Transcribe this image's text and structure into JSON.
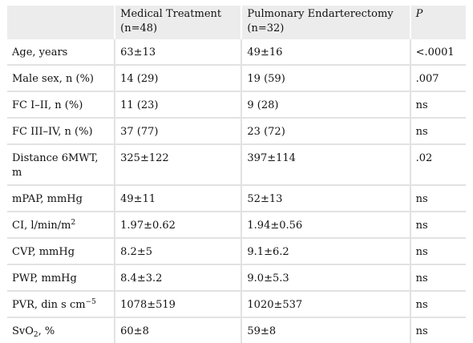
{
  "header": {
    "col0": "",
    "col1_line1": "Medical Treatment",
    "col1_line2": "(n=48)",
    "col2_line1": "Pulmonary Endarterectomy",
    "col2_line2": "(n=32)",
    "col3": "P"
  },
  "rows": [
    {
      "label": "Age, years",
      "med": "63±13",
      "pea": "49±16",
      "p": "<.0001"
    },
    {
      "label": "Male sex, n (%)",
      "med": "14 (29)",
      "pea": "19 (59)",
      "p": ".007"
    },
    {
      "label": "FC I–II, n (%)",
      "med": "11 (23)",
      "pea": "9 (28)",
      "p": "ns"
    },
    {
      "label": "FC III–IV, n (%)",
      "med": "37 (77)",
      "pea": "23 (72)",
      "p": "ns"
    },
    {
      "label_line1": "Distance 6MWT,",
      "label_line2": "m",
      "med": "325±122",
      "pea": "397±114",
      "p": ".02"
    },
    {
      "label": "mPAP, mmHg",
      "med": "49±11",
      "pea": "52±13",
      "p": "ns"
    },
    {
      "label": "CI, l/min/m",
      "label_sup": "2",
      "med": "1.97±0.62",
      "pea": "1.94±0.56",
      "p": "ns"
    },
    {
      "label": "CVP, mmHg",
      "med": "8.2±5",
      "pea": "9.1±6.2",
      "p": "ns"
    },
    {
      "label": "PWP, mmHg",
      "med": "8.4±3.2",
      "pea": "9.0±5.3",
      "p": "ns"
    },
    {
      "label": "PVR, din s cm",
      "label_sup": "−5",
      "med": "1078±519",
      "pea": "1020±537",
      "p": "ns"
    },
    {
      "label": "SvO",
      "label_sub": "2",
      "label_tail": ", %",
      "med": "60±8",
      "pea": "59±8",
      "p": "ns"
    }
  ]
}
